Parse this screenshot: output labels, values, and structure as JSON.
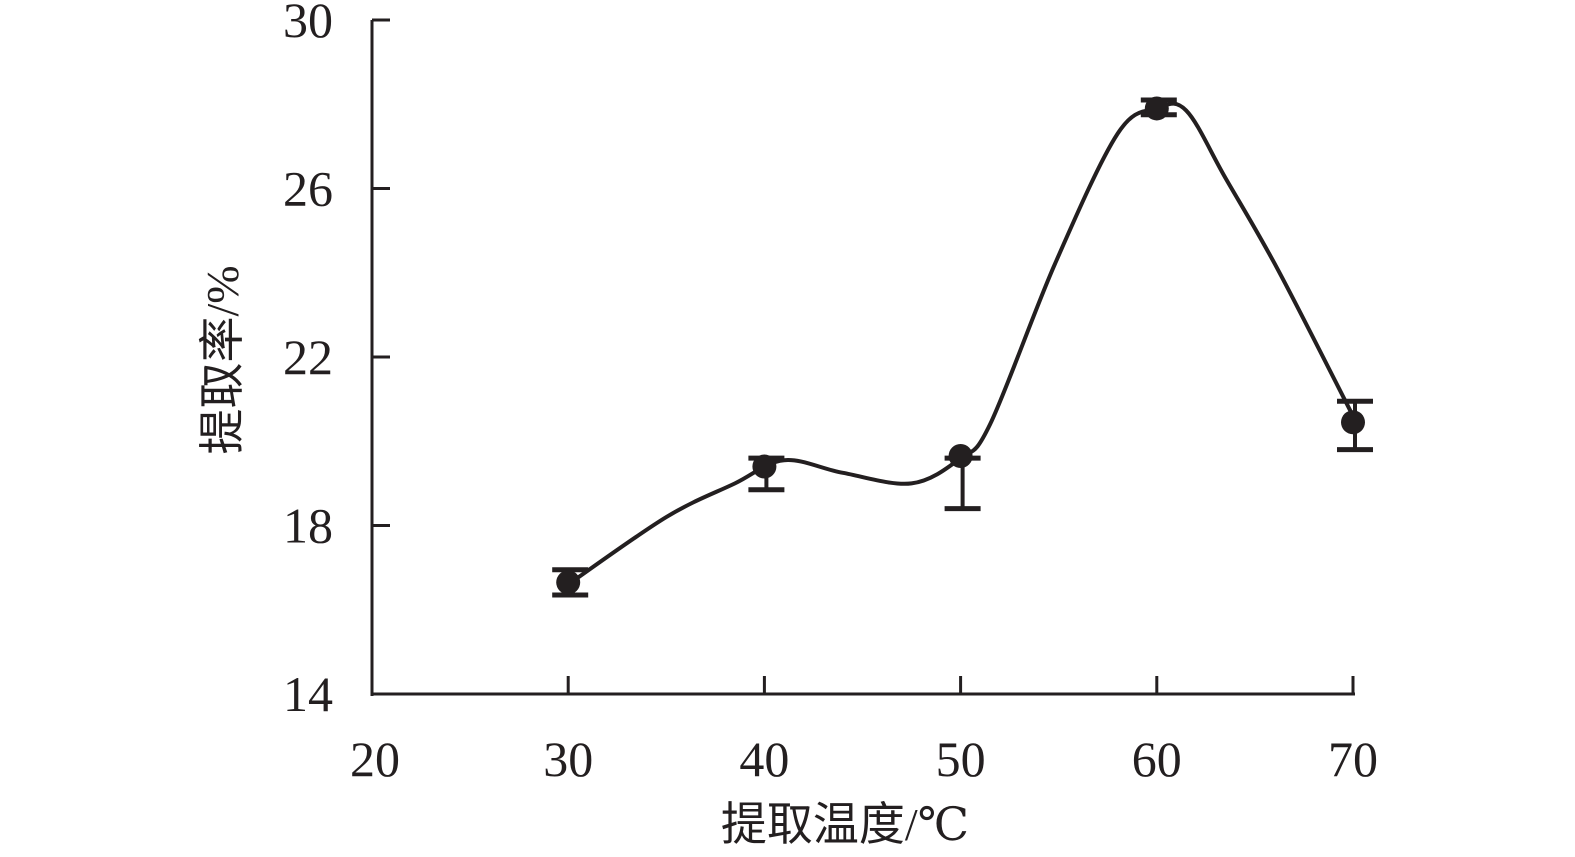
{
  "chart_data": {
    "type": "line",
    "title": "",
    "xlabel": "提取温度/℃",
    "ylabel": "提取率/%",
    "xlim": [
      20,
      70
    ],
    "ylim": [
      14,
      30
    ],
    "xticks": [
      20,
      30,
      40,
      50,
      60,
      70
    ],
    "yticks": [
      14,
      18,
      22,
      26,
      30
    ],
    "grid": false,
    "legend": "none",
    "color": "#231f20",
    "points": [
      {
        "x": 30,
        "y": 16.65,
        "err_low": 16.35,
        "err_high": 16.95
      },
      {
        "x": 40,
        "y": 19.4,
        "err_low": 18.85,
        "err_high": 19.6
      },
      {
        "x": 50,
        "y": 19.65,
        "err_low": 18.4,
        "err_high": 19.6
      },
      {
        "x": 60,
        "y": 27.9,
        "err_low": 27.75,
        "err_high": 28.1
      },
      {
        "x": 70,
        "y": 20.45,
        "err_low": 19.8,
        "err_high": 20.95
      }
    ],
    "smoothed_line": [
      [
        30,
        16.6
      ],
      [
        35,
        18.2
      ],
      [
        38.5,
        19.0
      ],
      [
        41,
        19.55
      ],
      [
        44,
        19.25
      ],
      [
        47.5,
        19.0
      ],
      [
        50,
        19.6
      ],
      [
        51.5,
        20.4
      ],
      [
        54.8,
        24.2
      ],
      [
        58,
        27.3
      ],
      [
        60,
        27.9
      ],
      [
        61.5,
        27.85
      ],
      [
        63.5,
        26.25
      ],
      [
        66.2,
        24.05
      ],
      [
        70,
        20.6
      ]
    ]
  }
}
